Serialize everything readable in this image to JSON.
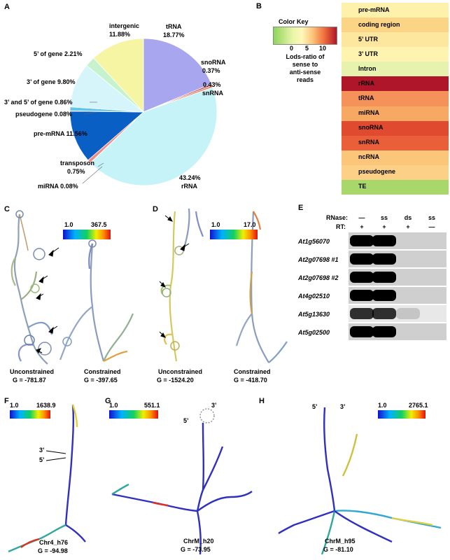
{
  "panels": {
    "A": "A",
    "B": "B",
    "C": "C",
    "D": "D",
    "E": "E",
    "F": "F",
    "G": "G",
    "H": "H"
  },
  "pie": {
    "type": "pie",
    "slices": [
      {
        "name": "tRNA",
        "value": 18.77,
        "label": "tRNA",
        "pct": "18.77%",
        "color": "#a9a6f0"
      },
      {
        "name": "snoRNA",
        "value": 0.37,
        "label": "snoRNA",
        "pct": "0.37%",
        "color": "#d63a2e"
      },
      {
        "name": "snRNA",
        "value": 0.43,
        "label": "snRNA",
        "pct": "0.43%",
        "color": "#e8806a"
      },
      {
        "name": "rRNA",
        "value": 43.24,
        "label": "rRNA",
        "pct": "43.24%",
        "color": "#c6f3f7"
      },
      {
        "name": "miRNA",
        "value": 0.08,
        "label": "miRNA 0.08%",
        "pct": "",
        "color": "#f5b2a6"
      },
      {
        "name": "transposon",
        "value": 0.75,
        "label": "transposon",
        "pct": "0.75%",
        "color": "#f08c86"
      },
      {
        "name": "pre-mRNA",
        "value": 11.56,
        "label": "pre-mRNA 11.56%",
        "pct": "",
        "color": "#0a5fc4"
      },
      {
        "name": "pseudogene",
        "value": 0.08,
        "label": "pseudogene 0.08%",
        "pct": "",
        "color": "#2d79d1"
      },
      {
        "name": "3' and 5' of gene",
        "value": 0.86,
        "label": "3’ and 5’ of gene 0.86%",
        "pct": "",
        "color": "#62c6e8"
      },
      {
        "name": "3' of gene",
        "value": 9.8,
        "label": "3’ of gene 9.80%",
        "pct": "",
        "color": "#d5f5fa"
      },
      {
        "name": "5' of gene",
        "value": 2.21,
        "label": "5’ of gene 2.21%",
        "pct": "",
        "color": "#c6f2cd"
      },
      {
        "name": "intergenic",
        "value": 11.88,
        "label": "intergenic",
        "pct": "11.88%",
        "color": "#f5f5a4"
      }
    ]
  },
  "heatmap": {
    "color_key_title": "Color Key",
    "ticks": [
      "0",
      "5",
      "10"
    ],
    "key_caption": [
      "Lods-ratio of",
      "sense to",
      "anti-sense",
      "reads"
    ],
    "rows": [
      {
        "label": "pre-mRNA",
        "color": "#fdf1ac"
      },
      {
        "label": "coding region",
        "color": "#fbd486"
      },
      {
        "label": "5’ UTR",
        "color": "#fde69e"
      },
      {
        "label": "3’ UTR",
        "color": "#fff3b0"
      },
      {
        "label": "Intron",
        "color": "#e6f2ad"
      },
      {
        "label": "rRNA",
        "color": "#b0162a"
      },
      {
        "label": "tRNA",
        "color": "#f5925a"
      },
      {
        "label": "miRNA",
        "color": "#f7a963"
      },
      {
        "label": "snoRNA",
        "color": "#e04a2f"
      },
      {
        "label": "snRNA",
        "color": "#ea5f39"
      },
      {
        "label": "ncRNA",
        "color": "#fbc679"
      },
      {
        "label": "pseudogene",
        "color": "#fdd088"
      },
      {
        "label": "TE",
        "color": "#a8d76c"
      }
    ]
  },
  "structures": {
    "C": {
      "scale_min": "1.0",
      "scale_max": "367.5",
      "left_caption": "Unconstrained",
      "left_g": "G = -781.87",
      "right_caption": "Constrained",
      "right_g": "G = -397.65"
    },
    "D": {
      "scale_min": "1.0",
      "scale_max": "17.0",
      "left_caption": "Unconstrained",
      "left_g": "G = -1524.20",
      "right_caption": "Constrained",
      "right_g": "G = -418.70"
    },
    "F": {
      "scale_min": "1.0",
      "scale_max": "1638.9",
      "name": "Chr4_h76",
      "g": "G = -94.98",
      "five": "5’",
      "three": "3’"
    },
    "G": {
      "scale_min": "1.0",
      "scale_max": "551.1",
      "name": "ChrM_h20",
      "g": "G = -73.95",
      "five": "5’",
      "three": "3’"
    },
    "H": {
      "scale_min": "1.0",
      "scale_max": "2765.1",
      "name": "ChrM_h95",
      "g": "G = -81.10",
      "five": "5’",
      "three": "3’"
    }
  },
  "gel": {
    "rnase_label": "RNase:",
    "rt_label": "RT:",
    "rnase": [
      "—",
      "ss",
      "ds",
      "ss"
    ],
    "rt": [
      "+",
      "+",
      "+",
      "—"
    ],
    "rows": [
      {
        "gene": "At1g56070",
        "bands": [
          1,
          1,
          0,
          0
        ]
      },
      {
        "gene": "At2g07698 #1",
        "bands": [
          1,
          1,
          0,
          0
        ]
      },
      {
        "gene": "At2g07698 #2",
        "bands": [
          1,
          1,
          0,
          0
        ]
      },
      {
        "gene": "At4g02510",
        "bands": [
          1,
          1,
          0,
          0
        ]
      },
      {
        "gene": "At5g13630",
        "bands": [
          0.8,
          0.8,
          0.15,
          0
        ]
      },
      {
        "gene": "At5g02500",
        "bands": [
          1,
          1,
          0,
          0
        ]
      }
    ]
  }
}
